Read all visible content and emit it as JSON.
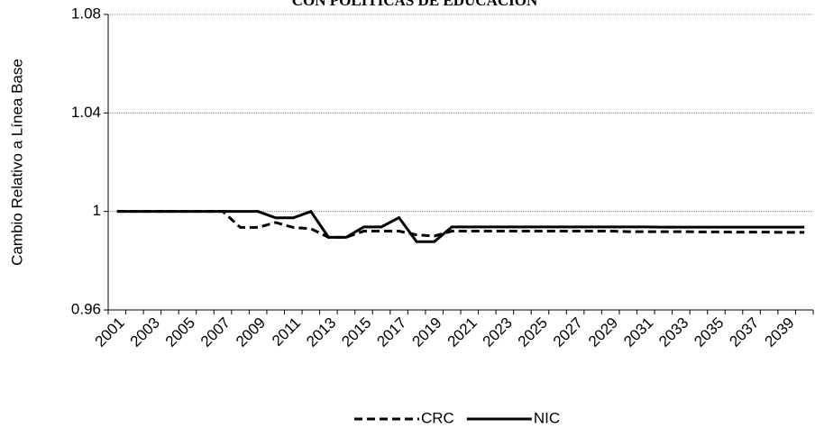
{
  "chart_data": {
    "type": "line",
    "title": "CON POLÍTICAS DE EDUCACIÓN",
    "y_label": "Cambio Relativo a Línea Base",
    "categories": [
      "2001",
      null,
      "2003",
      null,
      "2005",
      null,
      "2007",
      null,
      "2009",
      null,
      "2011",
      null,
      "2013",
      null,
      "2015",
      null,
      "2017",
      null,
      "2019",
      null,
      "2021",
      null,
      "2023",
      null,
      "2025",
      null,
      "2027",
      null,
      "2029",
      null,
      "2031",
      null,
      "2033",
      null,
      "2035",
      null,
      "2037",
      null,
      "2039",
      null
    ],
    "series": [
      {
        "name": "CRC",
        "color": "#000000",
        "line_style": "dashed",
        "values": [
          1.0,
          1.0,
          1.0,
          1.0,
          1.0,
          1.0,
          1.0,
          0.9935,
          0.9935,
          0.9955,
          0.9935,
          0.993,
          0.9895,
          0.9895,
          0.992,
          0.992,
          0.992,
          0.9905,
          0.99,
          0.992,
          0.992,
          0.992,
          0.992,
          0.992,
          0.992,
          0.992,
          0.992,
          0.992,
          0.992,
          0.9918,
          0.9918,
          0.9918,
          0.9918,
          0.9917,
          0.9917,
          0.9916,
          0.9916,
          0.9916,
          0.9915,
          0.9915
        ]
      },
      {
        "name": "NIC",
        "color": "#000000",
        "line_style": "solid",
        "values": [
          1.0,
          1.0,
          1.0,
          1.0,
          1.0,
          1.0,
          1.0,
          1.0,
          1.0,
          0.9974,
          0.9974,
          1.0,
          0.9895,
          0.9895,
          0.9937,
          0.9937,
          0.9975,
          0.9877,
          0.9877,
          0.9937,
          0.9937,
          0.9937,
          0.9937,
          0.9937,
          0.9937,
          0.9937,
          0.9937,
          0.9937,
          0.9937,
          0.9937,
          0.9937,
          0.9936,
          0.9936,
          0.9936,
          0.9936,
          0.9936,
          0.9936,
          0.9936,
          0.9936,
          0.9936
        ]
      }
    ],
    "ylim": [
      0.96,
      1.08
    ],
    "yticks": [
      0.96,
      1,
      1.04,
      1.08
    ],
    "grid": true,
    "legend": "bottom"
  }
}
